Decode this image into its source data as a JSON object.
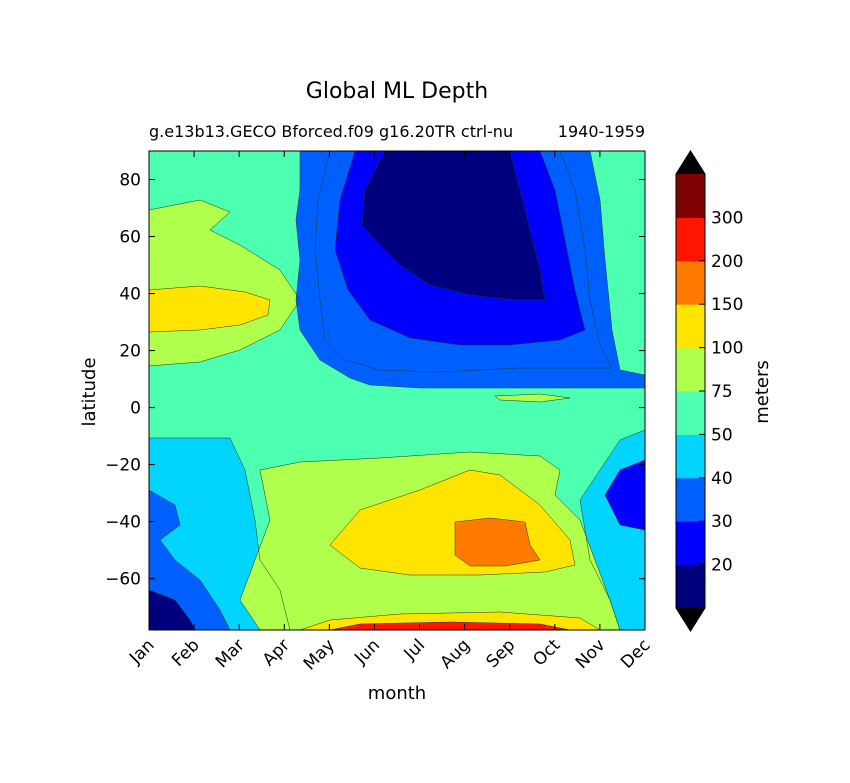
{
  "chart_data": {
    "type": "contourf",
    "title": "Global ML Depth",
    "subtitle_left": "g.e13b13.GECO Bforced.f09 g16.20TR ctrl-nu",
    "subtitle_right": "1940-1959",
    "xlabel": "month",
    "ylabel": "latitude",
    "x_ticks": [
      "Jan",
      "Feb",
      "Mar",
      "Apr",
      "May",
      "Jun",
      "Jul",
      "Aug",
      "Sep",
      "Oct",
      "Nov",
      "Dec"
    ],
    "y_ticks": [
      80,
      60,
      40,
      20,
      0,
      -20,
      -40,
      -60
    ],
    "y_tick_labels": [
      "80",
      "60",
      "40",
      "20",
      "0",
      "−20",
      "−40",
      "−60"
    ],
    "ylim": [
      -78,
      90
    ],
    "xlim": [
      0,
      11
    ],
    "colorbar": {
      "label": "meters",
      "extend": "both",
      "levels": [
        10,
        20,
        30,
        40,
        50,
        75,
        100,
        150,
        200,
        300,
        400
      ],
      "tick_values": [
        20,
        30,
        40,
        50,
        75,
        100,
        150,
        200,
        300
      ],
      "tick_labels": [
        "20",
        "30",
        "40",
        "50",
        "75",
        "100",
        "150",
        "200",
        "300"
      ],
      "colors": [
        "#00007f",
        "#0000ff",
        "#0060ff",
        "#00d4ff",
        "#4dffb0",
        "#b0ff4d",
        "#ffe400",
        "#ff7a00",
        "#ff1500",
        "#7f0000"
      ],
      "under_color": "#000000",
      "over_color": "#000000"
    },
    "regions": [
      {
        "name": "background",
        "value_range": "50-75",
        "level": 4
      },
      {
        "name": "nh-shallow-summer",
        "value_range": "30-40",
        "level": 2
      },
      {
        "name": "nh-deep-core",
        "value_range": "10-20",
        "level": 0
      },
      {
        "name": "nh-deep-patch",
        "value_range": "20-30",
        "level": 1
      },
      {
        "name": "sh-winter-deep",
        "value_range": "75-100",
        "level": 5
      },
      {
        "name": "sh-winter-deeper",
        "value_range": "100-150",
        "level": 6
      },
      {
        "name": "sh-winter-core",
        "value_range": "150-200",
        "level": 7
      },
      {
        "name": "nh-winter-deep",
        "value_range": "100-150",
        "level": 6
      },
      {
        "name": "southern-edge-max",
        "value_range": "200-300",
        "level": 8
      }
    ]
  }
}
